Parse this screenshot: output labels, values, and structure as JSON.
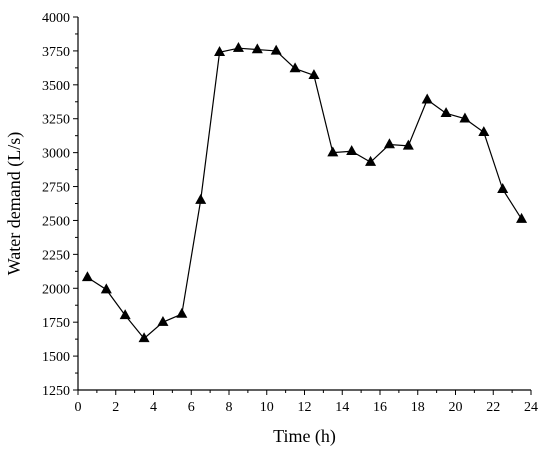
{
  "chart_data": {
    "type": "line",
    "xlabel": "Time (h)",
    "ylabel": "Water demand (L/s)",
    "xlim": [
      0,
      24
    ],
    "ylim": [
      1250,
      4000
    ],
    "x_ticks": [
      0,
      2,
      4,
      6,
      8,
      10,
      12,
      14,
      16,
      18,
      20,
      22,
      24
    ],
    "y_ticks": [
      1250,
      1500,
      1750,
      2000,
      2250,
      2500,
      2750,
      3000,
      3250,
      3500,
      3750,
      4000
    ],
    "grid": false,
    "marker": "triangle",
    "series": [
      {
        "x": [
          0.5,
          1.5,
          2.5,
          3.5,
          4.5,
          5.5,
          6.5,
          7.5,
          8.5,
          9.5,
          10.5,
          11.5,
          12.5,
          13.5,
          14.5,
          15.5,
          16.5,
          17.5,
          18.5,
          19.5,
          20.5,
          21.5,
          22.5,
          23.5
        ],
        "values": [
          2080,
          1990,
          1800,
          1630,
          1750,
          1810,
          2650,
          3740,
          3770,
          3760,
          3750,
          3620,
          3570,
          3000,
          3010,
          2930,
          3060,
          3050,
          3390,
          3290,
          3250,
          3150,
          2730,
          2510
        ],
        "color": "#000000"
      }
    ]
  }
}
